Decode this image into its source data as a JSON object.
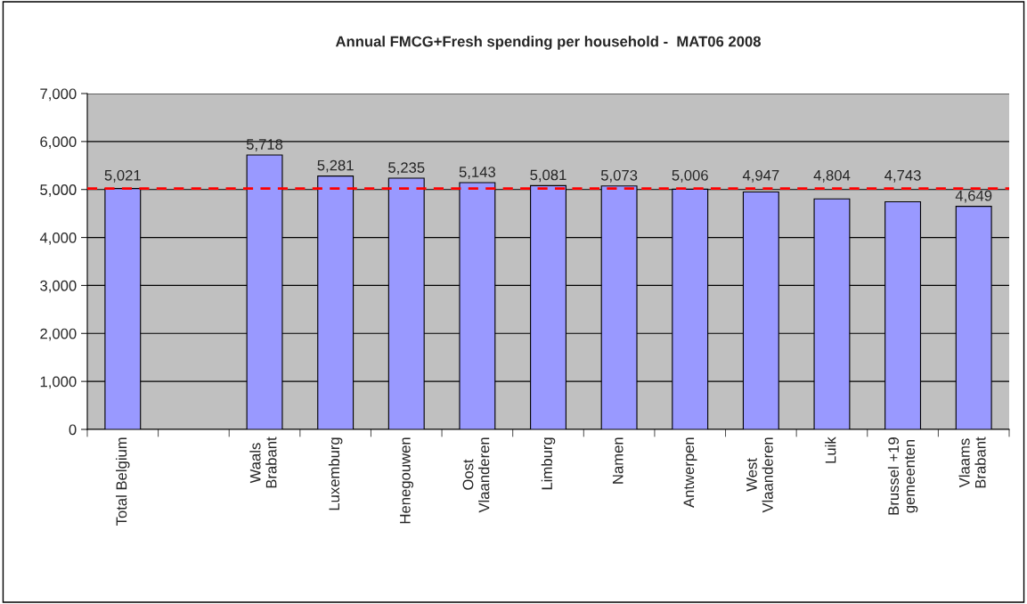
{
  "chart_data": {
    "type": "bar",
    "title": "Annual FMCG+Fresh spending per household -  MAT06 2008",
    "categories": [
      "Total Belgium",
      null,
      "Waals\nBrabant",
      "Luxemburg",
      "Henegouwen",
      "Oost\nVlaanderen",
      "Limburg",
      "Namen",
      "Antwerpen",
      "West\nVlaanderen",
      "Luik",
      "Brussel +19\ngemeenten",
      "Vlaams\nBrabant"
    ],
    "values": [
      5021,
      null,
      5718,
      5281,
      5235,
      5143,
      5081,
      5073,
      5006,
      4947,
      4804,
      4743,
      4649
    ],
    "color": "#9999ff",
    "ylim": [
      0,
      7000
    ],
    "yticks": [
      {
        "value": 0,
        "label": "0"
      },
      {
        "value": 1000,
        "label": "1,000"
      },
      {
        "value": 2000,
        "label": "2,000"
      },
      {
        "value": 3000,
        "label": "3,000"
      },
      {
        "value": 4000,
        "label": "4,000"
      },
      {
        "value": 5000,
        "label": "5,000"
      },
      {
        "value": 6000,
        "label": "6,000"
      },
      {
        "value": 7000,
        "label": "7,000"
      }
    ],
    "value_labels": [
      "5,021",
      null,
      "5,718",
      "5,281",
      "5,235",
      "5,143",
      "5,081",
      "5,073",
      "5,006",
      "4,947",
      "4,804",
      "4,743",
      "4,649"
    ],
    "grid": "y",
    "legend": false,
    "ref_lines": [
      {
        "axis": "y",
        "value": 5021,
        "color": "#ff0000",
        "line_style": "dashed"
      }
    ]
  }
}
